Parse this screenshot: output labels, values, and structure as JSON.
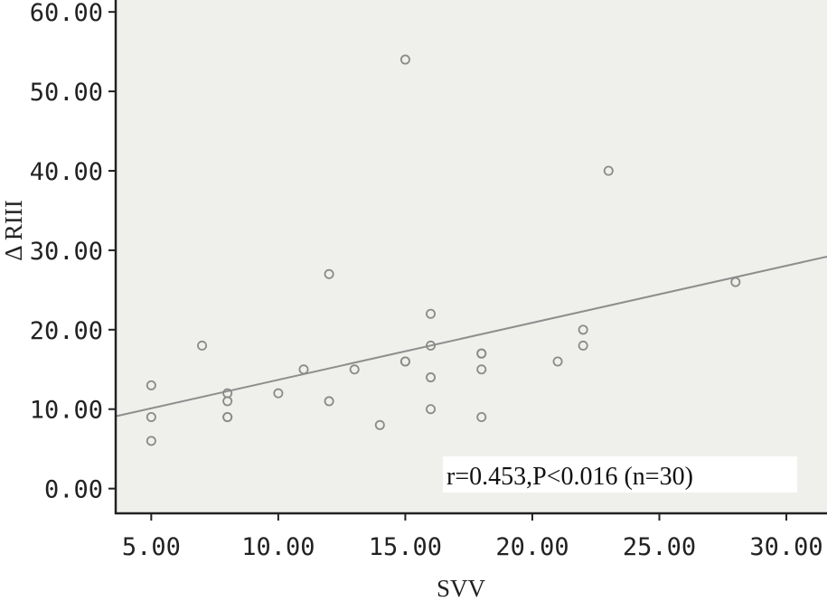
{
  "chart_data": {
    "type": "scatter",
    "title": "",
    "xlabel": "SVV",
    "ylabel": "Δ RIII",
    "xlim": [
      3.6,
      31.6
    ],
    "ylim": [
      -3,
      61.5
    ],
    "x_ticks": [
      "5.00",
      "10.00",
      "15.00",
      "20.00",
      "25.00",
      "30.00"
    ],
    "y_ticks": [
      "0.00",
      "10.00",
      "20.00",
      "30.00",
      "40.00",
      "50.00",
      "60.00"
    ],
    "x_tick_values": [
      5,
      10,
      15,
      20,
      25,
      30
    ],
    "y_tick_values": [
      0,
      10,
      20,
      30,
      40,
      50,
      60
    ],
    "grid": false,
    "annotation": "r=0.453,P<0.016 (n=30)",
    "fit_line": {
      "x": [
        3.6,
        31.6
      ],
      "y": [
        9.1,
        29.2
      ]
    },
    "points": [
      {
        "x": 5,
        "y": 13
      },
      {
        "x": 5,
        "y": 9
      },
      {
        "x": 5,
        "y": 6
      },
      {
        "x": 7,
        "y": 18
      },
      {
        "x": 8,
        "y": 12
      },
      {
        "x": 8,
        "y": 11
      },
      {
        "x": 8,
        "y": 9
      },
      {
        "x": 8,
        "y": 9
      },
      {
        "x": 10,
        "y": 12
      },
      {
        "x": 11,
        "y": 15
      },
      {
        "x": 12,
        "y": 27
      },
      {
        "x": 12,
        "y": 11
      },
      {
        "x": 13,
        "y": 15
      },
      {
        "x": 14,
        "y": 8
      },
      {
        "x": 15,
        "y": 54
      },
      {
        "x": 15,
        "y": 16
      },
      {
        "x": 15,
        "y": 16
      },
      {
        "x": 16,
        "y": 22
      },
      {
        "x": 16,
        "y": 18
      },
      {
        "x": 16,
        "y": 14
      },
      {
        "x": 16,
        "y": 10
      },
      {
        "x": 18,
        "y": 17
      },
      {
        "x": 18,
        "y": 17
      },
      {
        "x": 18,
        "y": 15
      },
      {
        "x": 18,
        "y": 9
      },
      {
        "x": 21,
        "y": 16
      },
      {
        "x": 22,
        "y": 20
      },
      {
        "x": 22,
        "y": 18
      },
      {
        "x": 23,
        "y": 40
      },
      {
        "x": 28,
        "y": 26
      }
    ]
  },
  "colors": {
    "plot_background": "#efefec",
    "marker": "#8a8a8a",
    "fit_line": "#8e8e8e",
    "axis": "#222222"
  }
}
